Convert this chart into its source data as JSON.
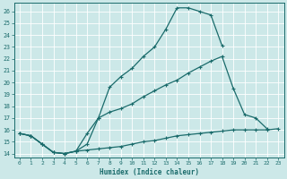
{
  "xlabel": "Humidex (Indice chaleur)",
  "bg_color": "#cce8e8",
  "grid_color": "#b0d4d4",
  "line_color": "#1a6b6b",
  "xlim": [
    -0.5,
    23.5
  ],
  "ylim": [
    13.7,
    26.7
  ],
  "xticks": [
    0,
    1,
    2,
    3,
    4,
    5,
    6,
    7,
    8,
    9,
    10,
    11,
    12,
    13,
    14,
    15,
    16,
    17,
    18,
    19,
    20,
    21,
    22,
    23
  ],
  "yticks": [
    14,
    15,
    16,
    17,
    18,
    19,
    20,
    21,
    22,
    23,
    24,
    25,
    26
  ],
  "line1_x": [
    0,
    1,
    2,
    3,
    4,
    5,
    6,
    7,
    8,
    9,
    10,
    11,
    12,
    13,
    14,
    15,
    16,
    17,
    18,
    19,
    20,
    21,
    22,
    23
  ],
  "line1_y": [
    15.7,
    15.5,
    14.8,
    14.1,
    14.0,
    14.2,
    14.3,
    14.4,
    14.5,
    14.6,
    14.8,
    15.0,
    15.1,
    15.3,
    15.5,
    15.6,
    15.7,
    15.8,
    15.9,
    16.0,
    16.0,
    16.0,
    16.0,
    16.1
  ],
  "line2_x": [
    0,
    1,
    2,
    3,
    4,
    5,
    6,
    7,
    8,
    9,
    10,
    11,
    12,
    13,
    14,
    15,
    16,
    17,
    18,
    19,
    20,
    21,
    22
  ],
  "line2_y": [
    15.7,
    15.5,
    14.8,
    14.1,
    14.0,
    14.2,
    15.7,
    17.0,
    17.5,
    17.8,
    18.2,
    18.8,
    19.3,
    19.8,
    20.2,
    20.8,
    21.3,
    21.8,
    22.2,
    19.5,
    17.3,
    17.0,
    16.1
  ],
  "line3_x": [
    0,
    1,
    2,
    3,
    4,
    5,
    6,
    7,
    8,
    9,
    10,
    11,
    12,
    13,
    14,
    15,
    16,
    17,
    18
  ],
  "line3_y": [
    15.7,
    15.5,
    14.8,
    14.1,
    14.0,
    14.2,
    14.8,
    17.0,
    19.6,
    20.5,
    21.2,
    22.2,
    23.0,
    24.5,
    26.3,
    26.3,
    26.0,
    25.7,
    23.1
  ]
}
